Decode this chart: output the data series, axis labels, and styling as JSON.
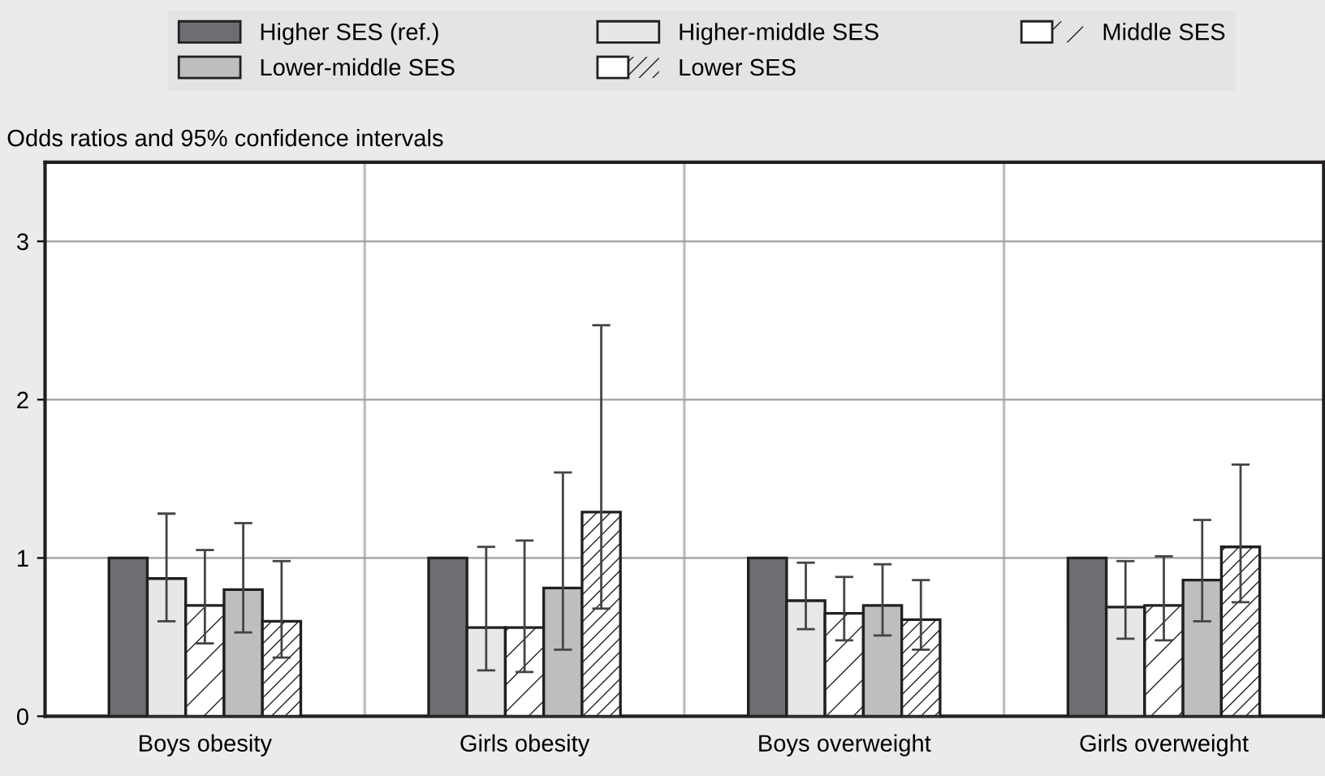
{
  "chart_data": {
    "type": "bar",
    "ylabel": "Odds ratios and 95% confidence intervals",
    "categories": [
      "Boys obesity",
      "Girls obesity",
      "Boys overweight",
      "Girls overweight"
    ],
    "series": [
      {
        "name": "Higher SES (ref.)",
        "color": "#6d6e71",
        "values": [
          1,
          1,
          1,
          1
        ],
        "errors": [
          null,
          null,
          null,
          null
        ]
      },
      {
        "name": "Higher-middle SES",
        "color": "#e6e7e8",
        "values": [
          0.87,
          0.56,
          0.73,
          0.69
        ],
        "errors": [
          [
            0.6,
            1.28
          ],
          [
            0.29,
            1.07
          ],
          [
            0.55,
            0.97
          ],
          [
            0.49,
            0.98
          ]
        ]
      },
      {
        "name": "Middle SES",
        "color": "#ffffff",
        "values": [
          0.7,
          0.56,
          0.65,
          0.7
        ],
        "errors": [
          [
            0.46,
            1.05
          ],
          [
            0.28,
            1.11
          ],
          [
            0.48,
            0.88
          ],
          [
            0.48,
            1.01
          ]
        ]
      },
      {
        "name": "Lower-middle SES",
        "color": "#bcbec0",
        "values": [
          0.8,
          0.81,
          0.7,
          0.86
        ],
        "errors": [
          [
            0.53,
            1.22
          ],
          [
            0.42,
            1.54
          ],
          [
            0.51,
            0.96
          ],
          [
            0.6,
            1.24
          ]
        ]
      },
      {
        "name": "Lower SES",
        "color": "#ffffff",
        "values": [
          0.6,
          1.29,
          0.61,
          1.07
        ],
        "errors": [
          [
            0.37,
            0.98
          ],
          [
            0.68,
            2.47
          ],
          [
            0.42,
            0.86
          ],
          [
            0.72,
            1.59
          ]
        ]
      }
    ],
    "ylim": [
      0,
      3.5
    ],
    "yticks": [
      0,
      1,
      2,
      3
    ],
    "grid": true,
    "legend": "top"
  }
}
